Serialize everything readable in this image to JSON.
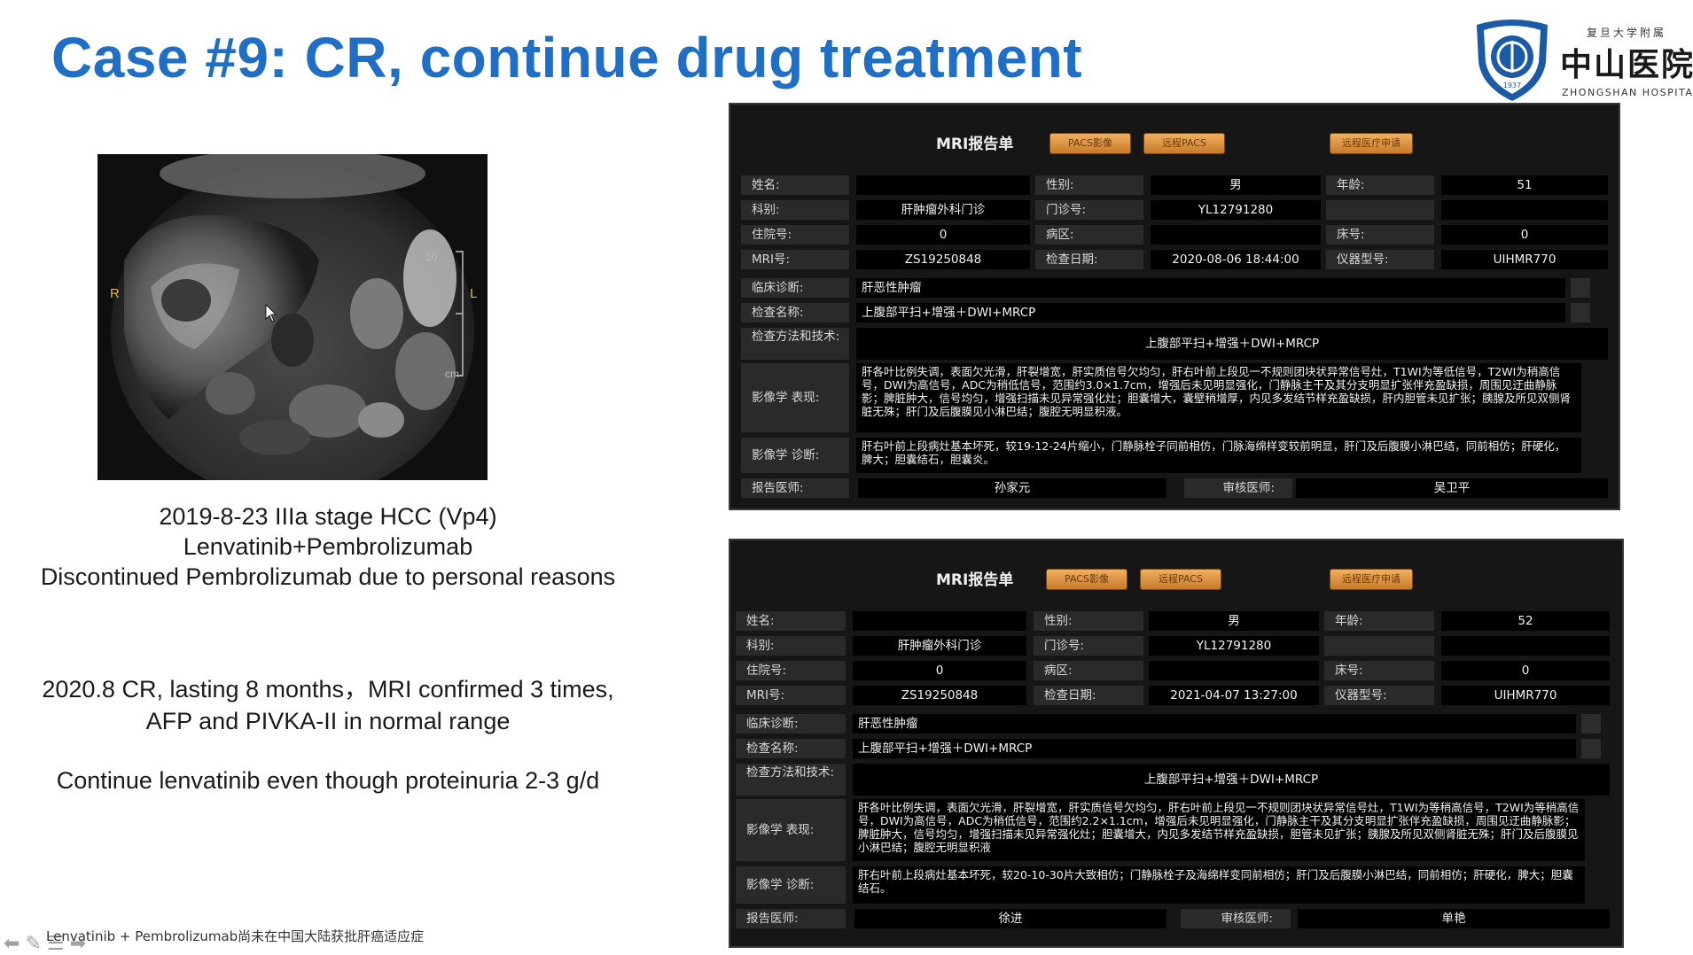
{
  "slide": {
    "title": "Case #9: CR, continue drug treatment",
    "logo": {
      "sub": "复旦大学附属",
      "name": "中山医院",
      "english": "ZHONGSHAN HOSPITAL",
      "year": "1937"
    },
    "image_labels": {
      "right": "R",
      "left": "L",
      "scale_num": "10",
      "scale_unit": "cm"
    },
    "text1": [
      "2019-8-23 IIIa stage HCC (Vp4)",
      "Lenvatinib+Pembrolizumab",
      "Discontinued Pembrolizumab due to personal reasons"
    ],
    "text2": [
      "2020.8 CR, lasting 8 months，MRI confirmed 3 times,",
      "AFP and PIVKA-II in normal range"
    ],
    "text3": "Continue lenvatinib even though proteinuria 2-3 g/d",
    "footnote": "Lenvatinib + Pembrolizumab尚未在中国大陆获批肝癌适应症",
    "nav_icons": [
      "arrow-left-icon",
      "pen-icon",
      "menu-icon",
      "arrow-right-icon"
    ]
  },
  "reports": [
    {
      "title": "MRI报告单",
      "buttons": [
        "PACS影像",
        "远程PACS",
        "远程医疗申请"
      ],
      "labels": {
        "name": "姓名:",
        "gender": "性别:",
        "age": "年龄:",
        "dept": "科别:",
        "clinic_no": "门诊号:",
        "inpatient_no": "住院号:",
        "ward": "病区:",
        "bed": "床号:",
        "mri_no": "MRI号:",
        "exam_date": "检查日期:",
        "device": "仪器型号:",
        "clinical_dx": "临床诊断:",
        "exam_name": "检查名称:",
        "method": "检查方法和技术:",
        "findings": "影像学 表现:",
        "impression": "影像学 诊断:",
        "reporter": "报告医师:",
        "reviewer": "审核医师:"
      },
      "values": {
        "name": "",
        "gender": "男",
        "age": "51",
        "dept": "肝肿瘤外科门诊",
        "clinic_no": "YL12791280",
        "inpatient_no": "0",
        "ward": "",
        "bed": "0",
        "mri_no": "ZS19250848",
        "exam_date": "2020-08-06 18:44:00",
        "device": "UIHMR770",
        "clinical_dx": "肝恶性肿瘤",
        "exam_name": "上腹部平扫+增强＋DWI+MRCP",
        "method": "上腹部平扫+增强＋DWI+MRCP",
        "findings": "肝各叶比例失调，表面欠光滑，肝裂增宽，肝实质信号欠均匀，肝右叶前上段见一不规则团块状异常信号灶，T1WI为等低信号，T2WI为稍高信号，DWI为高信号，ADC为稍低信号，范围约3.0×1.7cm，增强后未见明显强化，门静脉主干及其分支明显扩张伴充盈缺损，周围见迂曲静脉影；脾脏肿大，信号均匀，增强扫描未见异常强化灶；胆囊增大，囊壁稍增厚，内见多发结节样充盈缺损，肝内胆管未见扩张；胰腺及所见双侧肾脏无殊；肝门及后腹膜见小淋巴结；腹腔无明显积液。",
        "impression": "肝右叶前上段病灶基本坏死，较19-12-24片缩小，门静脉栓子同前相仿，门脉海绵样变较前明显，肝门及后腹膜小淋巴结，同前相仿；肝硬化，脾大；胆囊结石，胆囊炎。",
        "reporter": "孙家元",
        "reviewer": "吴卫平"
      }
    },
    {
      "title": "MRI报告单",
      "buttons": [
        "PACS影像",
        "远程PACS",
        "远程医疗申请"
      ],
      "labels": {
        "name": "姓名:",
        "gender": "性别:",
        "age": "年龄:",
        "dept": "科别:",
        "clinic_no": "门诊号:",
        "inpatient_no": "住院号:",
        "ward": "病区:",
        "bed": "床号:",
        "mri_no": "MRI号:",
        "exam_date": "检查日期:",
        "device": "仪器型号:",
        "clinical_dx": "临床诊断:",
        "exam_name": "检查名称:",
        "method": "检查方法和技术:",
        "findings": "影像学 表现:",
        "impression": "影像学 诊断:",
        "reporter": "报告医师:",
        "reviewer": "审核医师:"
      },
      "values": {
        "name": "",
        "gender": "男",
        "age": "52",
        "dept": "肝肿瘤外科门诊",
        "clinic_no": "YL12791280",
        "inpatient_no": "0",
        "ward": "",
        "bed": "0",
        "mri_no": "ZS19250848",
        "exam_date": "2021-04-07 13:27:00",
        "device": "UIHMR770",
        "clinical_dx": "肝恶性肿瘤",
        "exam_name": "上腹部平扫+增强＋DWI+MRCP",
        "method": "上腹部平扫+增强＋DWI+MRCP",
        "findings": "肝各叶比例失调，表面欠光滑，肝裂增宽，肝实质信号欠均匀，肝右叶前上段见一不规则团块状异常信号灶，T1WI为等稍高信号，T2WI为等稍高信号，DWI为高信号，ADC为稍低信号，范围约2.2×1.1cm，增强后未见明显强化，门静脉主干及其分支明显扩张伴充盈缺损，周围见迂曲静脉影；脾脏肿大，信号均匀，增强扫描未见异常强化灶；胆囊增大，内见多发结节样充盈缺损，胆管未见扩张；胰腺及所见双侧肾脏无殊；肝门及后腹膜见小淋巴结；腹腔无明显积液",
        "impression": "肝右叶前上段病灶基本坏死，较20-10-30片大致相仿；门静脉栓子及海绵样变同前相仿；肝门及后腹膜小淋巴结，同前相仿；肝硬化，脾大；胆囊结石。",
        "reporter": "徐进",
        "reviewer": "单艳"
      }
    }
  ]
}
